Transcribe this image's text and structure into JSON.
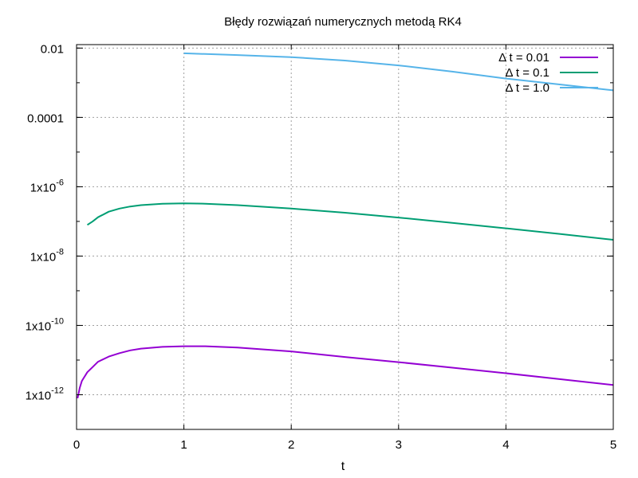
{
  "chart_data": {
    "type": "line",
    "title": "Błędy rozwiązań numerycznych metodą RK4",
    "xlabel": "t",
    "ylabel": "",
    "xlim": [
      0,
      5
    ],
    "ylim_log10": [
      -13,
      -1.9
    ],
    "yscale": "log",
    "grid": true,
    "legend_position": "top-right",
    "x_ticks": [
      {
        "value": 0,
        "label": "0"
      },
      {
        "value": 1,
        "label": "1"
      },
      {
        "value": 2,
        "label": "2"
      },
      {
        "value": 3,
        "label": "3"
      },
      {
        "value": 4,
        "label": "4"
      },
      {
        "value": 5,
        "label": "5"
      }
    ],
    "y_ticks": [
      {
        "exp": -2,
        "label": "0.01",
        "sup": ""
      },
      {
        "exp": -4,
        "label": "0.0001",
        "sup": ""
      },
      {
        "exp": -6,
        "label": "1x10",
        "sup": "-6"
      },
      {
        "exp": -8,
        "label": "1x10",
        "sup": "-8"
      },
      {
        "exp": -10,
        "label": "1x10",
        "sup": "-10"
      },
      {
        "exp": -12,
        "label": "1x10",
        "sup": "-12"
      }
    ],
    "series": [
      {
        "name": "Δ t = 0.01",
        "color": "#9400d3",
        "x": [
          0.01,
          0.03,
          0.05,
          0.1,
          0.15,
          0.2,
          0.3,
          0.4,
          0.5,
          0.6,
          0.8,
          1.0,
          1.2,
          1.5,
          2.0,
          2.5,
          3.0,
          3.5,
          4.0,
          4.5,
          5.0
        ],
        "log10_y": [
          -12.1,
          -11.8,
          -11.6,
          -11.35,
          -11.2,
          -11.05,
          -10.9,
          -10.8,
          -10.72,
          -10.67,
          -10.62,
          -10.6,
          -10.6,
          -10.64,
          -10.75,
          -10.91,
          -11.06,
          -11.22,
          -11.38,
          -11.55,
          -11.72
        ]
      },
      {
        "name": "Δ t = 0.1",
        "color": "#009e73",
        "x": [
          0.1,
          0.15,
          0.2,
          0.3,
          0.4,
          0.5,
          0.6,
          0.8,
          1.0,
          1.2,
          1.5,
          2.0,
          2.5,
          3.0,
          3.5,
          4.0,
          4.5,
          5.0
        ],
        "log10_y": [
          -7.1,
          -7.0,
          -6.88,
          -6.72,
          -6.63,
          -6.57,
          -6.53,
          -6.49,
          -6.48,
          -6.49,
          -6.53,
          -6.63,
          -6.75,
          -6.89,
          -7.04,
          -7.2,
          -7.36,
          -7.53
        ]
      },
      {
        "name": "Δ t = 1.0",
        "color": "#56b4e9",
        "x": [
          1.0,
          1.5,
          2.0,
          2.5,
          3.0,
          3.5,
          4.0,
          4.5,
          5.0
        ],
        "log10_y": [
          -2.15,
          -2.2,
          -2.26,
          -2.36,
          -2.5,
          -2.68,
          -2.88,
          -3.05,
          -3.22
        ]
      }
    ]
  }
}
